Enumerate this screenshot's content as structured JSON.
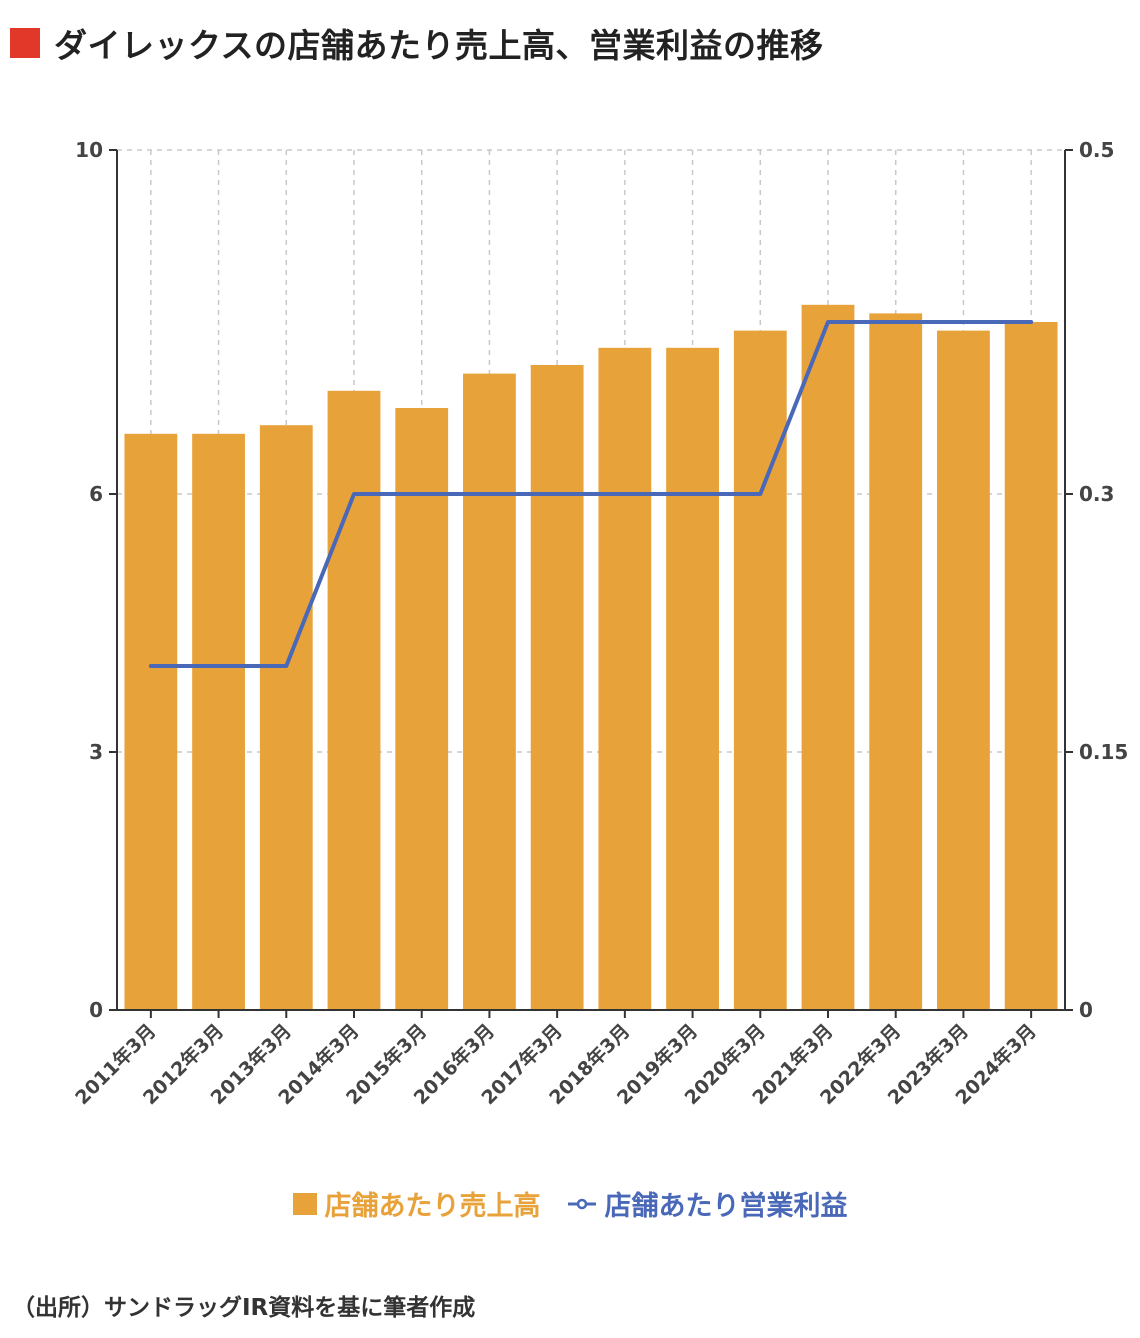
{
  "title": "ダイレックスの店舗あたり売上高、営業利益の推移",
  "source": "（出所）サンドラッグIR資料を基に筆者作成",
  "colors": {
    "bar": "#e8a23a",
    "line": "#4a68b8",
    "title_square": "#e2382a"
  },
  "chart_data": {
    "type": "bar",
    "categories": [
      "2011年3月",
      "2012年3月",
      "2013年3月",
      "2014年3月",
      "2015年3月",
      "2016年3月",
      "2017年3月",
      "2018年3月",
      "2019年3月",
      "2020年3月",
      "2021年3月",
      "2022年3月",
      "2023年3月",
      "2024年3月"
    ],
    "series": [
      {
        "name": "店舗あたり売上高",
        "type": "bar",
        "axis": "left",
        "values": [
          6.7,
          6.7,
          6.8,
          7.2,
          7.0,
          7.4,
          7.5,
          7.7,
          7.7,
          7.9,
          8.2,
          8.1,
          7.9,
          8.0
        ]
      },
      {
        "name": "店舗あたり営業利益",
        "type": "line",
        "axis": "right",
        "values": [
          0.2,
          0.2,
          0.2,
          0.3,
          0.3,
          0.3,
          0.3,
          0.3,
          0.3,
          0.3,
          0.4,
          0.4,
          0.4,
          0.4
        ]
      }
    ],
    "y_left": {
      "range": [
        0,
        10
      ],
      "ticks": [
        0,
        3,
        6,
        10
      ],
      "tick_labels": [
        "0",
        "3",
        "6",
        "10"
      ]
    },
    "y_right": {
      "range": [
        0,
        0.5
      ],
      "ticks": [
        0,
        0.15,
        0.3,
        0.5
      ],
      "tick_labels": [
        "0",
        "0.15",
        "0.3",
        "0.5"
      ]
    },
    "grid": true,
    "legend_position": "bottom-center"
  }
}
